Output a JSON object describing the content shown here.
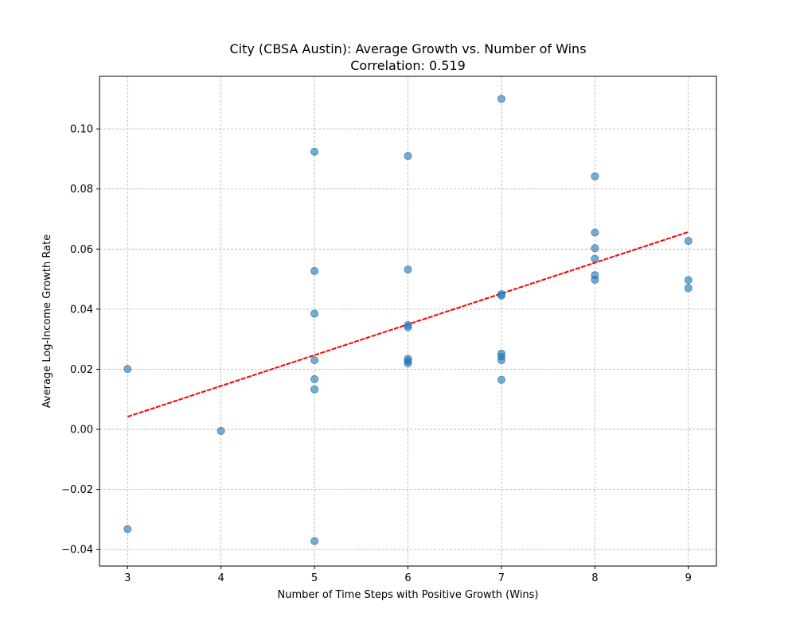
{
  "chart_data": {
    "type": "scatter",
    "title": "City (CBSA Austin): Average Growth vs. Number of Wins",
    "subtitle": "Correlation: 0.519",
    "xlabel": "Number of Time Steps with Positive Growth (Wins)",
    "ylabel": "Average Log-Income Growth Rate",
    "xlim": [
      2.7,
      9.3
    ],
    "ylim": [
      -0.0455,
      0.1175
    ],
    "xticks": [
      3,
      4,
      5,
      6,
      7,
      8,
      9
    ],
    "xtick_labels": [
      "3",
      "4",
      "5",
      "6",
      "7",
      "8",
      "9"
    ],
    "yticks": [
      -0.04,
      -0.02,
      0.0,
      0.02,
      0.04,
      0.06,
      0.08,
      0.1
    ],
    "ytick_labels": [
      "−0.04",
      "−0.02",
      "0.00",
      "0.02",
      "0.04",
      "0.06",
      "0.08",
      "0.10"
    ],
    "grid": true,
    "points": [
      {
        "x": 3,
        "y": 0.0201
      },
      {
        "x": 3,
        "y": -0.0332
      },
      {
        "x": 4,
        "y": -0.0005
      },
      {
        "x": 5,
        "y": 0.0924
      },
      {
        "x": 5,
        "y": 0.0527
      },
      {
        "x": 5,
        "y": 0.0385
      },
      {
        "x": 5,
        "y": 0.023
      },
      {
        "x": 5,
        "y": 0.0167
      },
      {
        "x": 5,
        "y": 0.0133
      },
      {
        "x": 5,
        "y": -0.0372
      },
      {
        "x": 6,
        "y": 0.091
      },
      {
        "x": 6,
        "y": 0.0532
      },
      {
        "x": 6,
        "y": 0.0347
      },
      {
        "x": 6,
        "y": 0.034
      },
      {
        "x": 6,
        "y": 0.0235
      },
      {
        "x": 6,
        "y": 0.0227
      },
      {
        "x": 6,
        "y": 0.022
      },
      {
        "x": 7,
        "y": 0.11
      },
      {
        "x": 7,
        "y": 0.045
      },
      {
        "x": 7,
        "y": 0.0445
      },
      {
        "x": 7,
        "y": 0.0252
      },
      {
        "x": 7,
        "y": 0.0242
      },
      {
        "x": 7,
        "y": 0.023
      },
      {
        "x": 7,
        "y": 0.0165
      },
      {
        "x": 8,
        "y": 0.0842
      },
      {
        "x": 8,
        "y": 0.0655
      },
      {
        "x": 8,
        "y": 0.0603
      },
      {
        "x": 8,
        "y": 0.0568
      },
      {
        "x": 8,
        "y": 0.0513
      },
      {
        "x": 8,
        "y": 0.0498
      },
      {
        "x": 9,
        "y": 0.0627
      },
      {
        "x": 9,
        "y": 0.0497
      },
      {
        "x": 9,
        "y": 0.047
      }
    ],
    "trendline": {
      "x": [
        3,
        9
      ],
      "y": [
        0.0042,
        0.0657
      ]
    },
    "colors": {
      "points": "#1f77b4",
      "trendline": "#ff0000",
      "grid": "#b0b0b0",
      "axes": "#000000"
    }
  }
}
